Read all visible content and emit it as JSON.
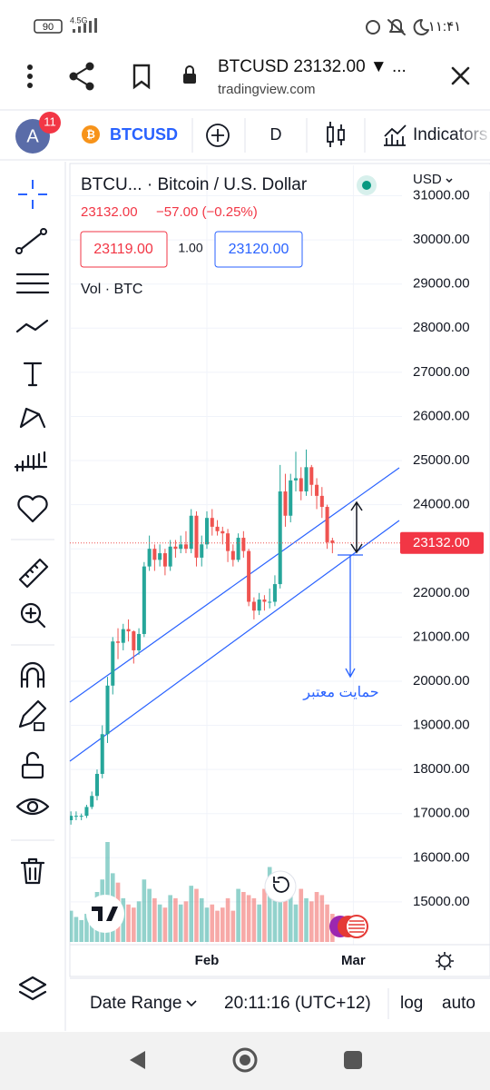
{
  "status_bar": {
    "battery": "90",
    "network": "4.5G",
    "time": "۱۱:۴۱"
  },
  "browser": {
    "title": "BTCUSD 23132.00 ▼ ...",
    "url": "tradingview.com"
  },
  "toolbar": {
    "avatar": "A",
    "badge": "11",
    "symbol": "BTCUSD",
    "interval": "D",
    "indicators": "Indicators"
  },
  "chart_data": {
    "type": "candlestick",
    "title": "BTCU... · Bitcoin / U.S. Dollar",
    "change": "−57.00 (−0.25%)",
    "bid": "23119.00",
    "spread": "1.00",
    "ask": "23120.00",
    "volume_label": "Vol · BTC",
    "currency": "USD",
    "last_price": {
      "value": 23132,
      "label": "23132.00"
    },
    "annotation": "حمایت معتبر",
    "up_color": "#26a69a",
    "down_color": "#ef5350",
    "open": [
      16850,
      16950,
      16950,
      16950,
      17150,
      17400,
      17900,
      18800,
      19900,
      20900,
      20870,
      21180,
      21130,
      20700,
      21070,
      22600,
      23000,
      22750,
      22900,
      22600,
      23050,
      23000,
      23100,
      23000,
      23750,
      22800,
      23100,
      23700,
      23500,
      23400,
      23350,
      22950,
      22750,
      23250,
      22950,
      21800,
      21600,
      21850,
      21800,
      21800,
      22200,
      24300,
      23750,
      24550,
      24600,
      24300,
      24850,
      24450,
      24200,
      23950,
      23189
    ],
    "high": [
      17050,
      17050,
      17000,
      17200,
      17500,
      18000,
      19000,
      20100,
      21000,
      21200,
      21300,
      21400,
      21150,
      21200,
      22700,
      23300,
      23100,
      23100,
      23000,
      23200,
      23200,
      23300,
      23400,
      23900,
      23850,
      23300,
      23850,
      23900,
      23650,
      23500,
      23450,
      23100,
      23350,
      23400,
      23000,
      21900,
      22000,
      21950,
      22100,
      22400,
      24900,
      24700,
      24700,
      25200,
      24850,
      25250,
      24900,
      24600,
      24400,
      24000,
      23250
    ],
    "low": [
      16750,
      16850,
      16850,
      16900,
      17100,
      17300,
      17800,
      18600,
      19700,
      20500,
      20700,
      20900,
      20400,
      20600,
      21000,
      22500,
      22500,
      22600,
      22400,
      22500,
      22800,
      22900,
      22900,
      22900,
      22600,
      22600,
      23000,
      23300,
      23300,
      23100,
      22700,
      22600,
      22700,
      22800,
      21700,
      21400,
      21500,
      21600,
      21650,
      21700,
      22100,
      23500,
      23600,
      24300,
      24100,
      24200,
      24200,
      23900,
      23700,
      23000,
      22900
    ],
    "close": [
      16950,
      16950,
      16950,
      17150,
      17400,
      17900,
      18800,
      19900,
      20900,
      20870,
      21180,
      21130,
      20700,
      21070,
      22600,
      23000,
      22750,
      22900,
      22600,
      23050,
      23000,
      23100,
      23000,
      23750,
      22800,
      23100,
      23700,
      23500,
      23400,
      23350,
      22950,
      22750,
      23250,
      22950,
      21800,
      21600,
      21850,
      21800,
      21800,
      22200,
      24300,
      23750,
      24550,
      24600,
      24300,
      24850,
      24450,
      24200,
      23950,
      23150,
      23132
    ],
    "volume": [
      50,
      40,
      35,
      45,
      60,
      80,
      100,
      160,
      110,
      95,
      70,
      60,
      55,
      65,
      100,
      85,
      70,
      60,
      55,
      75,
      70,
      60,
      65,
      90,
      85,
      70,
      55,
      60,
      50,
      55,
      70,
      50,
      85,
      80,
      75,
      70,
      60,
      85,
      120,
      100,
      110,
      95,
      80,
      60,
      85,
      70,
      65,
      80,
      75,
      60,
      45
    ],
    "xlim": [
      -0.2,
      63.3
    ],
    "xticks": [
      {
        "value": 26,
        "label": "Feb"
      },
      {
        "value": 54,
        "label": "Mar"
      }
    ],
    "ylim": [
      14030,
      31690
    ],
    "yticks": [
      {
        "value": 15000,
        "label": "15000.00"
      },
      {
        "value": 16000,
        "label": "16000.00"
      },
      {
        "value": 17000,
        "label": "17000.00"
      },
      {
        "value": 18000,
        "label": "18000.00"
      },
      {
        "value": 19000,
        "label": "19000.00"
      },
      {
        "value": 20000,
        "label": "20000.00"
      },
      {
        "value": 21000,
        "label": "21000.00"
      },
      {
        "value": 22000,
        "label": "22000.00"
      },
      {
        "value": 23000,
        "label": "23000.00"
      },
      {
        "value": 24000,
        "label": "24000.00"
      },
      {
        "value": 25000,
        "label": "25000.00"
      },
      {
        "value": 26000,
        "label": "26000.00"
      },
      {
        "value": 27000,
        "label": "27000.00"
      },
      {
        "value": 28000,
        "label": "28000.00"
      },
      {
        "value": 29000,
        "label": "29000.00"
      },
      {
        "value": 30000,
        "label": "30000.00"
      },
      {
        "value": 31000,
        "label": "31000.00"
      }
    ],
    "grid": true
  },
  "bottom_bar": {
    "date_range": "Date Range",
    "time": "20:11:16 (UTC+12)",
    "log": "log",
    "auto": "auto"
  }
}
